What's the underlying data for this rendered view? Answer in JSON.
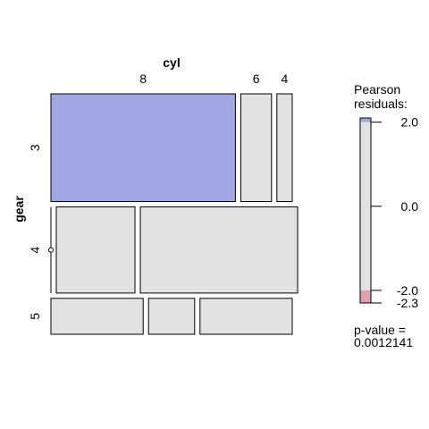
{
  "chart_data": {
    "type": "mosaic",
    "title": "",
    "x_variable": "cyl",
    "y_variable": "gear",
    "x_categories": [
      "8",
      "6",
      "4"
    ],
    "y_categories": [
      "3",
      "4",
      "5"
    ],
    "counts": [
      {
        "gear": "3",
        "cyl": "8",
        "count": 12
      },
      {
        "gear": "3",
        "cyl": "6",
        "count": 2
      },
      {
        "gear": "3",
        "cyl": "4",
        "count": 1
      },
      {
        "gear": "4",
        "cyl": "8",
        "count": 0
      },
      {
        "gear": "4",
        "cyl": "6",
        "count": 4
      },
      {
        "gear": "4",
        "cyl": "4",
        "count": 8
      },
      {
        "gear": "5",
        "cyl": "8",
        "count": 2
      },
      {
        "gear": "5",
        "cyl": "6",
        "count": 1
      },
      {
        "gear": "5",
        "cyl": "4",
        "count": 2
      }
    ],
    "shaded_cells": [
      {
        "gear": "3",
        "cyl": "8",
        "color": "#9FA8E2"
      }
    ],
    "neutral_color": "#E2E2E2",
    "legend": {
      "title_lines": [
        "Pearson",
        "residuals:"
      ],
      "ticks": [
        "2.0",
        "0.0",
        "-2.0",
        "-2.3"
      ],
      "tick_values": [
        2.0,
        0.0,
        -2.0,
        -2.3
      ],
      "max": 2.1,
      "min": -2.3,
      "bands": [
        {
          "from": 2.0,
          "to": 2.1,
          "color": "#9FA8E2"
        },
        {
          "from": -2.0,
          "to": 2.0,
          "color": "#E2E2E2"
        },
        {
          "from": -2.3,
          "to": -2.0,
          "color": "#E2A0AA"
        }
      ],
      "pvalue_label": "p-value =",
      "pvalue": "0.0012141",
      "placement": "right"
    }
  }
}
